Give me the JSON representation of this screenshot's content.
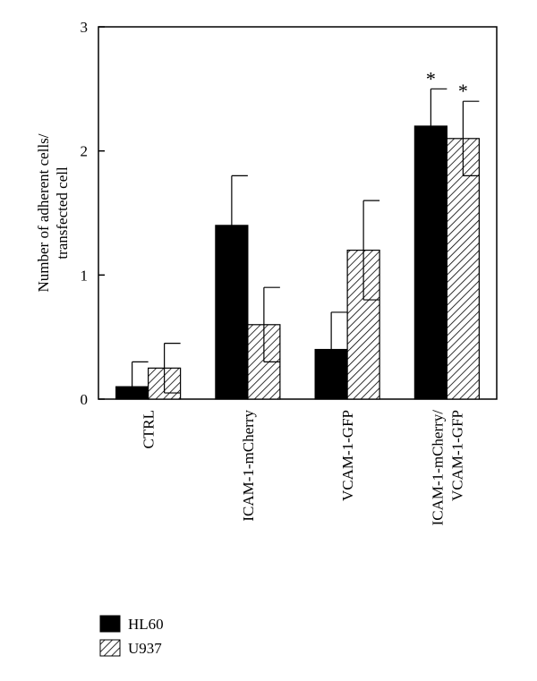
{
  "chart_data": {
    "type": "bar",
    "title": "",
    "xlabel": "",
    "ylabel": [
      "Number of adherent cells/",
      "transfected cell"
    ],
    "ylim": [
      0,
      3
    ],
    "yticks": [
      0,
      1,
      2,
      3
    ],
    "categories": [
      [
        "CTRL"
      ],
      [
        "ICAM-1-mCherry"
      ],
      [
        "VCAM-1-GFP"
      ],
      [
        "ICAM-1-mCherry/",
        "VCAM-1-GFP"
      ]
    ],
    "series": [
      {
        "name": "HL60",
        "fill": "solid",
        "color": "#000000",
        "values": [
          0.1,
          1.4,
          0.4,
          2.2
        ],
        "errors": [
          0.2,
          0.4,
          0.3,
          0.3
        ],
        "significance": [
          "",
          "",
          "",
          "*"
        ]
      },
      {
        "name": "U937",
        "fill": "hatched",
        "color": "#000000",
        "values": [
          0.25,
          0.6,
          1.2,
          2.1
        ],
        "errors": [
          0.2,
          0.3,
          0.4,
          0.3
        ],
        "significance": [
          "",
          "",
          "",
          "*"
        ]
      }
    ],
    "legend_position": "bottom-left",
    "grid": false
  }
}
